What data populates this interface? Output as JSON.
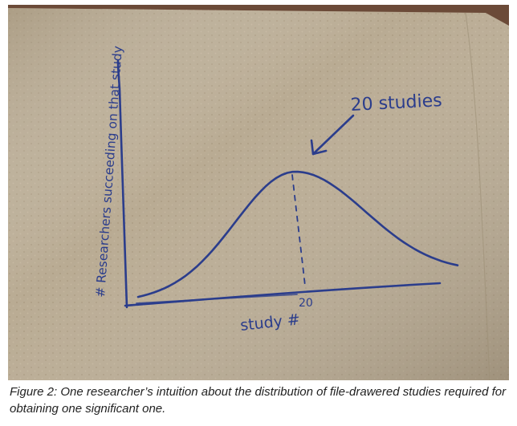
{
  "chart_data": {
    "type": "line",
    "medium": "hand-drawn sketch on a paper napkin",
    "title": "",
    "xlabel": "study #",
    "ylabel": "# Researchers succeeding on that study",
    "x_tick_labels": [
      "20"
    ],
    "annotation": "20 studies",
    "shape": "bell curve",
    "peak_x": 20,
    "ink_color": "#2b3d8c",
    "paper_color": "#b9ab93"
  },
  "caption": {
    "text": "Figure 2: One researcher’s intuition about the distribution of file-drawered studies required for obtaining one significant one."
  }
}
